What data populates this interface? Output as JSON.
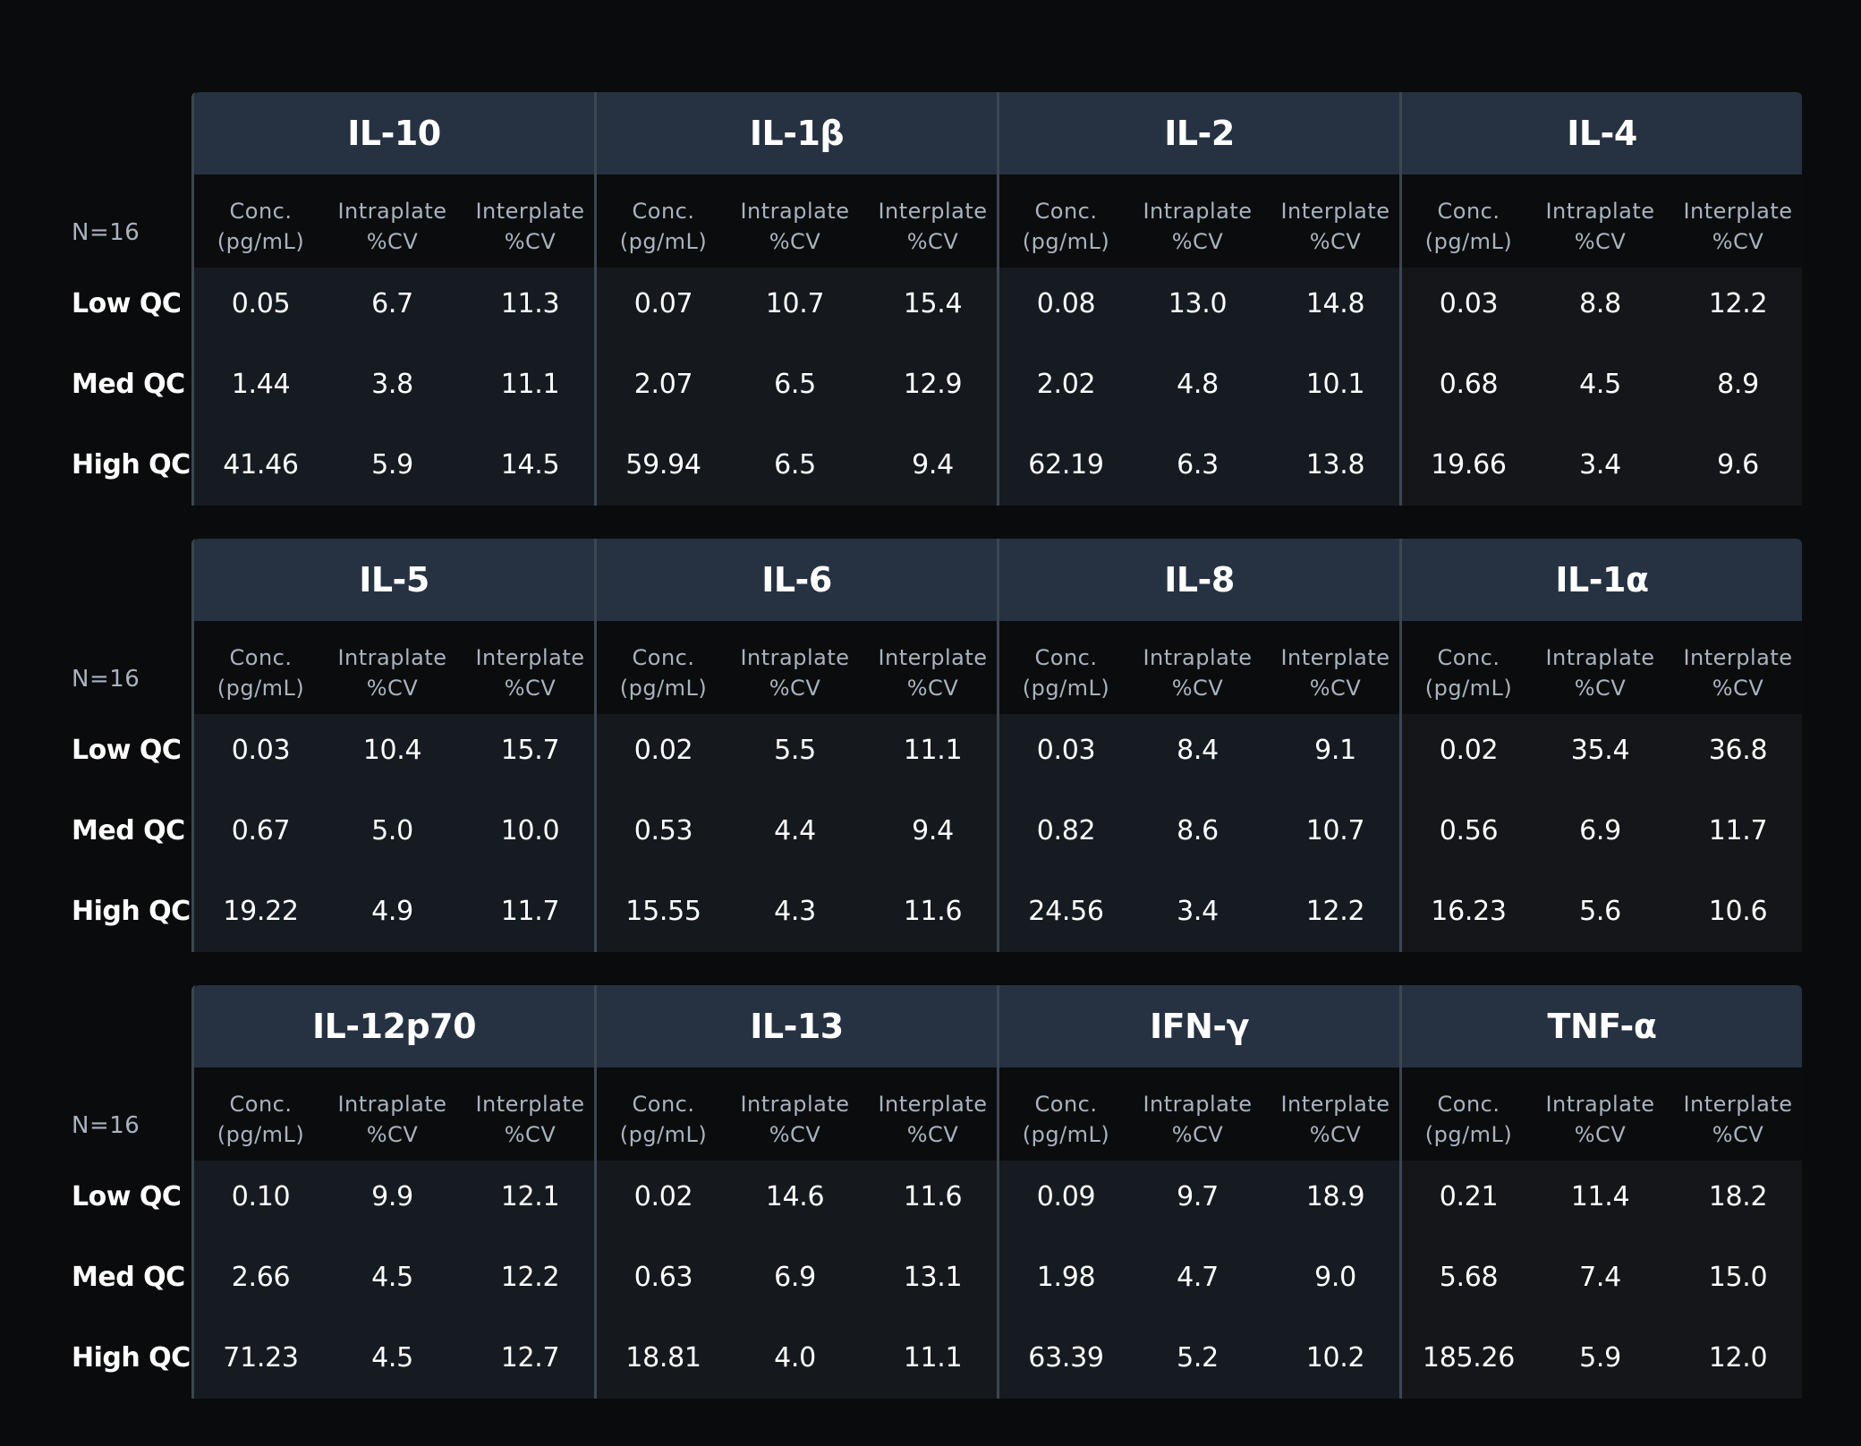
{
  "column_headers": {
    "conc_line1": "Conc.",
    "conc_line2": "(pg/mL)",
    "intra_line1": "Intraplate",
    "intra_line2": "%CV",
    "inter_line1": "Interplate",
    "inter_line2": "%CV"
  },
  "row_labels": [
    "Low QC",
    "Med QC",
    "High QC"
  ],
  "blocks": [
    {
      "n_label": "N=16",
      "analytes": [
        {
          "name": "IL-10",
          "rows": [
            [
              "0.05",
              "6.7",
              "11.3"
            ],
            [
              "1.44",
              "3.8",
              "11.1"
            ],
            [
              "41.46",
              "5.9",
              "14.5"
            ]
          ]
        },
        {
          "name": "IL-1β",
          "rows": [
            [
              "0.07",
              "10.7",
              "15.4"
            ],
            [
              "2.07",
              "6.5",
              "12.9"
            ],
            [
              "59.94",
              "6.5",
              "9.4"
            ]
          ]
        },
        {
          "name": "IL-2",
          "rows": [
            [
              "0.08",
              "13.0",
              "14.8"
            ],
            [
              "2.02",
              "4.8",
              "10.1"
            ],
            [
              "62.19",
              "6.3",
              "13.8"
            ]
          ]
        },
        {
          "name": "IL-4",
          "rows": [
            [
              "0.03",
              "8.8",
              "12.2"
            ],
            [
              "0.68",
              "4.5",
              "8.9"
            ],
            [
              "19.66",
              "3.4",
              "9.6"
            ]
          ]
        }
      ]
    },
    {
      "n_label": "N=16",
      "analytes": [
        {
          "name": "IL-5",
          "rows": [
            [
              "0.03",
              "10.4",
              "15.7"
            ],
            [
              "0.67",
              "5.0",
              "10.0"
            ],
            [
              "19.22",
              "4.9",
              "11.7"
            ]
          ]
        },
        {
          "name": "IL-6",
          "rows": [
            [
              "0.02",
              "5.5",
              "11.1"
            ],
            [
              "0.53",
              "4.4",
              "9.4"
            ],
            [
              "15.55",
              "4.3",
              "11.6"
            ]
          ]
        },
        {
          "name": "IL-8",
          "rows": [
            [
              "0.03",
              "8.4",
              "9.1"
            ],
            [
              "0.82",
              "8.6",
              "10.7"
            ],
            [
              "24.56",
              "3.4",
              "12.2"
            ]
          ]
        },
        {
          "name": "IL-1α",
          "rows": [
            [
              "0.02",
              "35.4",
              "36.8"
            ],
            [
              "0.56",
              "6.9",
              "11.7"
            ],
            [
              "16.23",
              "5.6",
              "10.6"
            ]
          ]
        }
      ]
    },
    {
      "n_label": "N=16",
      "analytes": [
        {
          "name": "IL-12p70",
          "rows": [
            [
              "0.10",
              "9.9",
              "12.1"
            ],
            [
              "2.66",
              "4.5",
              "12.2"
            ],
            [
              "71.23",
              "4.5",
              "12.7"
            ]
          ]
        },
        {
          "name": "IL-13",
          "rows": [
            [
              "0.02",
              "14.6",
              "11.6"
            ],
            [
              "0.63",
              "6.9",
              "13.1"
            ],
            [
              "18.81",
              "4.0",
              "11.1"
            ]
          ]
        },
        {
          "name": "IFN-γ",
          "rows": [
            [
              "0.09",
              "9.7",
              "18.9"
            ],
            [
              "1.98",
              "4.7",
              "9.0"
            ],
            [
              "63.39",
              "5.2",
              "10.2"
            ]
          ]
        },
        {
          "name": "TNF-α",
          "rows": [
            [
              "0.21",
              "11.4",
              "18.2"
            ],
            [
              "5.68",
              "7.4",
              "15.0"
            ],
            [
              "185.26",
              "5.9",
              "12.0"
            ]
          ]
        }
      ]
    }
  ]
}
